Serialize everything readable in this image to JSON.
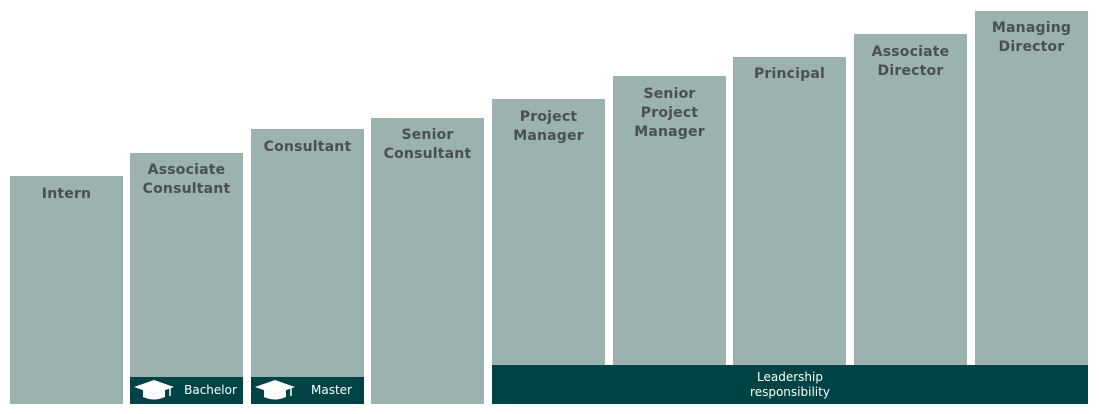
{
  "positions": [
    {
      "label": "Intern"
    },
    {
      "label": "Associate\nConsultant"
    },
    {
      "label": "Consultant"
    },
    {
      "label": "Senior\nConsultant"
    },
    {
      "label": "Project\nManager"
    },
    {
      "label": "Senior\nProject\nManager"
    },
    {
      "label": "Principal"
    },
    {
      "label": "Associate\nDirector"
    },
    {
      "label": "Managing\nDirector"
    }
  ],
  "education": {
    "bachelor_label": "Bachelor",
    "master_label": "Master",
    "icon": "graduation-cap-icon"
  },
  "leadership": {
    "label": "Leadership\nresponsibility"
  },
  "colors": {
    "column": "#9bb2b1",
    "label_text": "#4a4f4f",
    "dark_band": "#004344",
    "band_text": "#ffffff"
  }
}
